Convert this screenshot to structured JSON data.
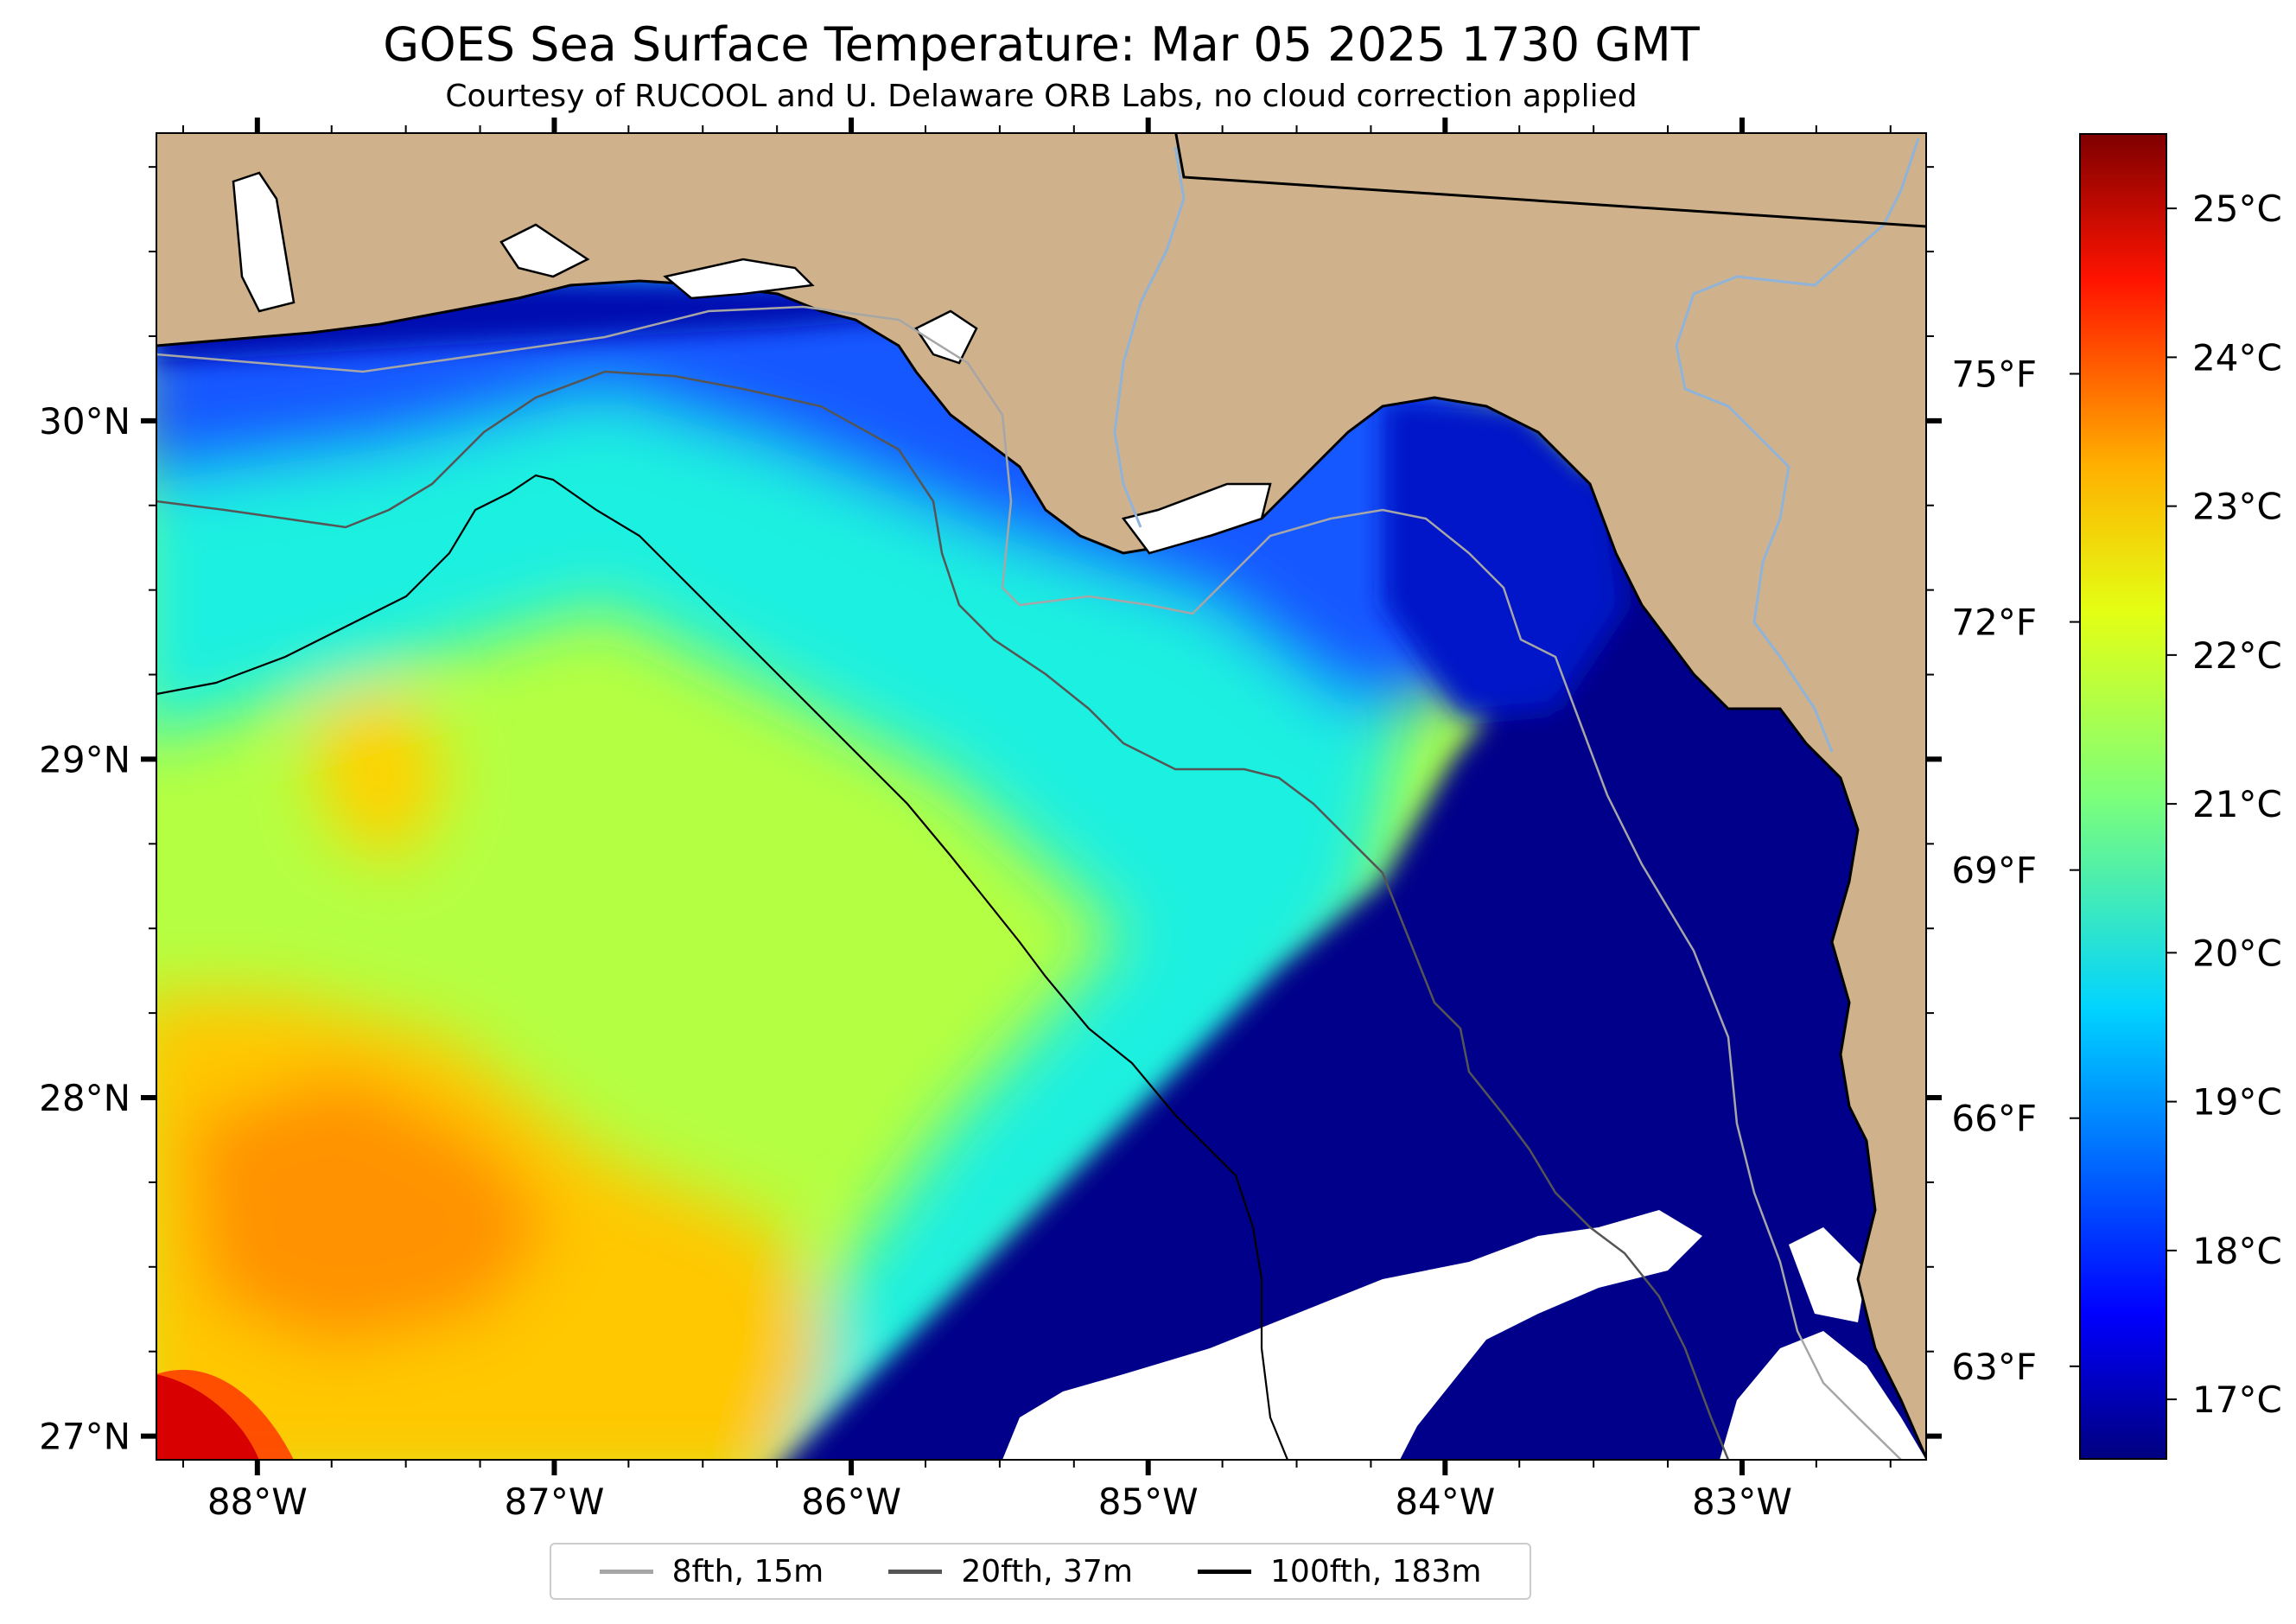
{
  "title": "GOES Sea Surface Temperature: Mar 05 2025 1730 GMT",
  "subtitle": "Courtesy of RUCOOL and U. Delaware ORB Labs, no cloud correction applied",
  "map": {
    "extent": {
      "lon_min": -88.34,
      "lon_max": -82.38,
      "lat_min": 26.93,
      "lat_max": 30.85
    },
    "lon_ticks": [
      {
        "label": "88°W",
        "value": -88
      },
      {
        "label": "87°W",
        "value": -87
      },
      {
        "label": "86°W",
        "value": -86
      },
      {
        "label": "85°W",
        "value": -85
      },
      {
        "label": "84°W",
        "value": -84
      },
      {
        "label": "83°W",
        "value": -83
      }
    ],
    "lat_ticks": [
      {
        "label": "30°N",
        "value": 30
      },
      {
        "label": "29°N",
        "value": 29
      },
      {
        "label": "28°N",
        "value": 28
      },
      {
        "label": "27°N",
        "value": 27
      }
    ],
    "fahrenheit_ticks": [
      {
        "label": "75°F",
        "value": 75
      },
      {
        "label": "72°F",
        "value": 72
      },
      {
        "label": "69°F",
        "value": 69
      },
      {
        "label": "66°F",
        "value": 66
      },
      {
        "label": "63°F",
        "value": 63
      }
    ],
    "colors": {
      "land": "#cfb28b",
      "cloud_mask": "#ffffff",
      "rivers": "#8fb3d9",
      "coast": "#000000"
    },
    "colormap": "jet",
    "temperature_regions": [
      {
        "region": "southwest corner",
        "temp_c": 25.0
      },
      {
        "region": "southwest gulf",
        "temp_c": 23.3
      },
      {
        "region": "central gulf",
        "temp_c": 21.8
      },
      {
        "region": "mid-shelf plume",
        "temp_c": 20.2
      },
      {
        "region": "nearshore panhandle",
        "temp_c": 18.0
      },
      {
        "region": "big bend shelf",
        "temp_c": 16.8
      }
    ]
  },
  "colorbar": {
    "range_c": [
      16.6,
      25.5
    ],
    "ticks": [
      {
        "label": "25°C",
        "value": 25
      },
      {
        "label": "24°C",
        "value": 24
      },
      {
        "label": "23°C",
        "value": 23
      },
      {
        "label": "22°C",
        "value": 22
      },
      {
        "label": "21°C",
        "value": 21
      },
      {
        "label": "20°C",
        "value": 20
      },
      {
        "label": "19°C",
        "value": 19
      },
      {
        "label": "18°C",
        "value": 18
      },
      {
        "label": "17°C",
        "value": 17
      }
    ]
  },
  "legend": {
    "items": [
      {
        "label": "8fth, 15m",
        "color": "#a6a6a6"
      },
      {
        "label": "20fth, 37m",
        "color": "#555555"
      },
      {
        "label": "100fth, 183m",
        "color": "#000000"
      }
    ]
  }
}
